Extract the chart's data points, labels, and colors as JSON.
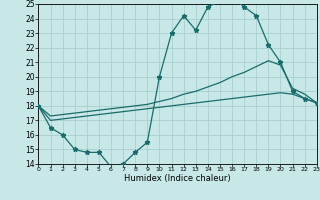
{
  "xlabel": "Humidex (Indice chaleur)",
  "background_color": "#c8e8e8",
  "grid_color": "#a8cece",
  "line_color": "#1a6b6b",
  "xlim": [
    0,
    23
  ],
  "ylim": [
    14,
    25
  ],
  "yticks": [
    14,
    15,
    16,
    17,
    18,
    19,
    20,
    21,
    22,
    23,
    24,
    25
  ],
  "xticks": [
    0,
    1,
    2,
    3,
    4,
    5,
    6,
    7,
    8,
    9,
    10,
    11,
    12,
    13,
    14,
    15,
    16,
    17,
    18,
    19,
    20,
    21,
    22,
    23
  ],
  "line1_x": [
    0,
    1,
    2,
    3,
    4,
    5,
    6,
    7,
    8,
    9,
    10,
    11,
    12,
    13,
    14,
    15,
    16,
    17,
    18,
    19,
    20,
    21,
    22,
    23
  ],
  "line1_y": [
    18.0,
    16.5,
    16.0,
    15.0,
    14.8,
    14.8,
    13.8,
    14.0,
    14.8,
    15.5,
    20.0,
    23.0,
    24.2,
    23.2,
    24.8,
    25.2,
    25.5,
    24.8,
    24.2,
    22.2,
    21.0,
    19.0,
    18.5,
    18.2
  ],
  "line2_x": [
    0,
    1,
    2,
    3,
    4,
    5,
    6,
    7,
    8,
    9,
    10,
    11,
    12,
    13,
    14,
    15,
    16,
    17,
    18,
    19,
    20,
    21,
    22,
    23
  ],
  "line2_y": [
    18.0,
    17.3,
    17.4,
    17.5,
    17.6,
    17.7,
    17.8,
    17.9,
    18.0,
    18.1,
    18.3,
    18.5,
    18.8,
    19.0,
    19.3,
    19.6,
    20.0,
    20.3,
    20.7,
    21.1,
    20.8,
    19.2,
    18.8,
    18.2
  ],
  "line3_x": [
    0,
    1,
    2,
    3,
    4,
    5,
    6,
    7,
    8,
    9,
    10,
    11,
    12,
    13,
    14,
    15,
    16,
    17,
    18,
    19,
    20,
    21,
    22,
    23
  ],
  "line3_y": [
    18.0,
    17.0,
    17.1,
    17.2,
    17.3,
    17.4,
    17.5,
    17.6,
    17.7,
    17.8,
    17.9,
    18.0,
    18.1,
    18.2,
    18.3,
    18.4,
    18.5,
    18.6,
    18.7,
    18.8,
    18.9,
    18.8,
    18.5,
    18.2
  ]
}
